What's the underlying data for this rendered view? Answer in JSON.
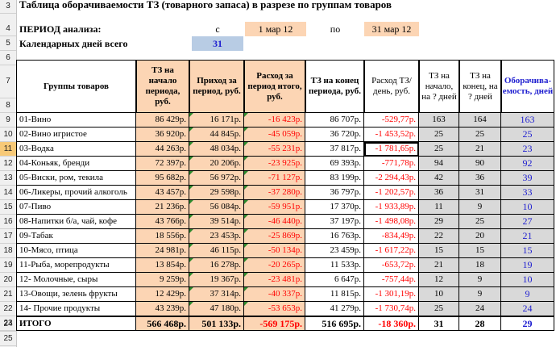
{
  "title": "Таблица оборачиваемости ТЗ (товарного запаса) в разрезе по группам товаров",
  "period": {
    "label": "ПЕРИОД анализа:",
    "from_label": "с",
    "from_value": "1 мар 12",
    "to_label": "по",
    "to_value": "31 мар 12"
  },
  "days": {
    "label": "Календарных дней всего",
    "value": "31"
  },
  "row_numbers": [
    "3",
    "4",
    "5",
    "6",
    "7",
    "8",
    "9",
    "10",
    "11",
    "12",
    "13",
    "14",
    "15",
    "16",
    "17",
    "18",
    "19",
    "20",
    "21",
    "22",
    "23",
    "24",
    "25"
  ],
  "active_row": "11",
  "headers": {
    "group": "Группы товаров",
    "tz_start": "ТЗ на начало периода, руб.",
    "income": "Приход за период, руб.",
    "expense": "Расход за период итого, руб.",
    "tz_end": "ТЗ на конец периода, руб.",
    "expense_day": "Расход ТЗ/ день, руб.",
    "days_start": "ТЗ на начало, на ? дней",
    "days_end": "ТЗ на конец, на ? дней",
    "turnover": "Оборачива- емость, дней"
  },
  "rows": [
    {
      "group": "01-Вино",
      "tz_start": "86 429р.",
      "income": "16 171р.",
      "expense": "-16 423р.",
      "tz_end": "86 707р.",
      "expense_day": "-529,77р.",
      "days_start": "163",
      "days_end": "164",
      "turnover": "163"
    },
    {
      "group": "02-Вино игристое",
      "tz_start": "36 920р.",
      "income": "44 845р.",
      "expense": "-45 059р.",
      "tz_end": "36 720р.",
      "expense_day": "-1 453,52р.",
      "days_start": "25",
      "days_end": "25",
      "turnover": "25"
    },
    {
      "group": "03-Водка",
      "tz_start": "44 263р.",
      "income": "48 034р.",
      "expense": "-55 231р.",
      "tz_end": "37 817р.",
      "expense_day": "-1 781,65р.",
      "days_start": "25",
      "days_end": "21",
      "turnover": "23"
    },
    {
      "group": "04-Коньяк, бренди",
      "tz_start": "72 397р.",
      "income": "20 206р.",
      "expense": "-23 925р.",
      "tz_end": "69 393р.",
      "expense_day": "-771,78р.",
      "days_start": "94",
      "days_end": "90",
      "turnover": "92"
    },
    {
      "group": "05-Виски, ром, текила",
      "tz_start": "95 682р.",
      "income": "56 972р.",
      "expense": "-71 127р.",
      "tz_end": "83 199р.",
      "expense_day": "-2 294,43р.",
      "days_start": "42",
      "days_end": "36",
      "turnover": "39"
    },
    {
      "group": "06-Ликеры, прочий алкоголь",
      "tz_start": "43 457р.",
      "income": "29 598р.",
      "expense": "-37 280р.",
      "tz_end": "36 797р.",
      "expense_day": "-1 202,57р.",
      "days_start": "36",
      "days_end": "31",
      "turnover": "33"
    },
    {
      "group": "07-Пиво",
      "tz_start": "21 236р.",
      "income": "56 084р.",
      "expense": "-59 951р.",
      "tz_end": "17 370р.",
      "expense_day": "-1 933,89р.",
      "days_start": "11",
      "days_end": "9",
      "turnover": "10"
    },
    {
      "group": "08-Напитки б/а, чай, кофе",
      "tz_start": "43 766р.",
      "income": "39 514р.",
      "expense": "-46 440р.",
      "tz_end": "37 197р.",
      "expense_day": "-1 498,08р.",
      "days_start": "29",
      "days_end": "25",
      "turnover": "27"
    },
    {
      "group": "09-Табак",
      "tz_start": "18 556р.",
      "income": "23 453р.",
      "expense": "-25 869р.",
      "tz_end": "16 763р.",
      "expense_day": "-834,49р.",
      "days_start": "22",
      "days_end": "20",
      "turnover": "21"
    },
    {
      "group": "10-Мясо, птица",
      "tz_start": "24 981р.",
      "income": "46 115р.",
      "expense": "-50 134р.",
      "tz_end": "23 459р.",
      "expense_day": "-1 617,22р.",
      "days_start": "15",
      "days_end": "15",
      "turnover": "15"
    },
    {
      "group": "11-Рыба, морепродукты",
      "tz_start": "13 854р.",
      "income": "16 278р.",
      "expense": "-20 265р.",
      "tz_end": "11 533р.",
      "expense_day": "-653,72р.",
      "days_start": "21",
      "days_end": "18",
      "turnover": "19"
    },
    {
      "group": "12- Молочные, сыры",
      "tz_start": "9 259р.",
      "income": "19 367р.",
      "expense": "-23 481р.",
      "tz_end": "6 647р.",
      "expense_day": "-757,44р.",
      "days_start": "12",
      "days_end": "9",
      "turnover": "10"
    },
    {
      "group": "13-Овощи, зелень фрукты",
      "tz_start": "12 429р.",
      "income": "37 314р.",
      "expense": "-40 337р.",
      "tz_end": "11 815р.",
      "expense_day": "-1 301,19р.",
      "days_start": "10",
      "days_end": "9",
      "turnover": "9"
    },
    {
      "group": "14- Прочие продукты",
      "tz_start": "43 239р.",
      "income": "47 180р.",
      "expense": "-53 653р.",
      "tz_end": "41 279р.",
      "expense_day": "-1 730,74р.",
      "days_start": "25",
      "days_end": "24",
      "turnover": "24"
    }
  ],
  "total": {
    "group": "ИТОГО",
    "tz_start": "566 468р.",
    "income": "501 133р.",
    "expense": "-569 175р.",
    "tz_end": "516 695р.",
    "expense_day": "-18 360р.",
    "days_start": "31",
    "days_end": "28",
    "turnover": "29"
  },
  "colors": {
    "peach": "#fcd5b4",
    "blue": "#b8cce4",
    "negative": "#ff0000",
    "turnover": "#1f1fd0",
    "active_row": "#f7c977"
  }
}
